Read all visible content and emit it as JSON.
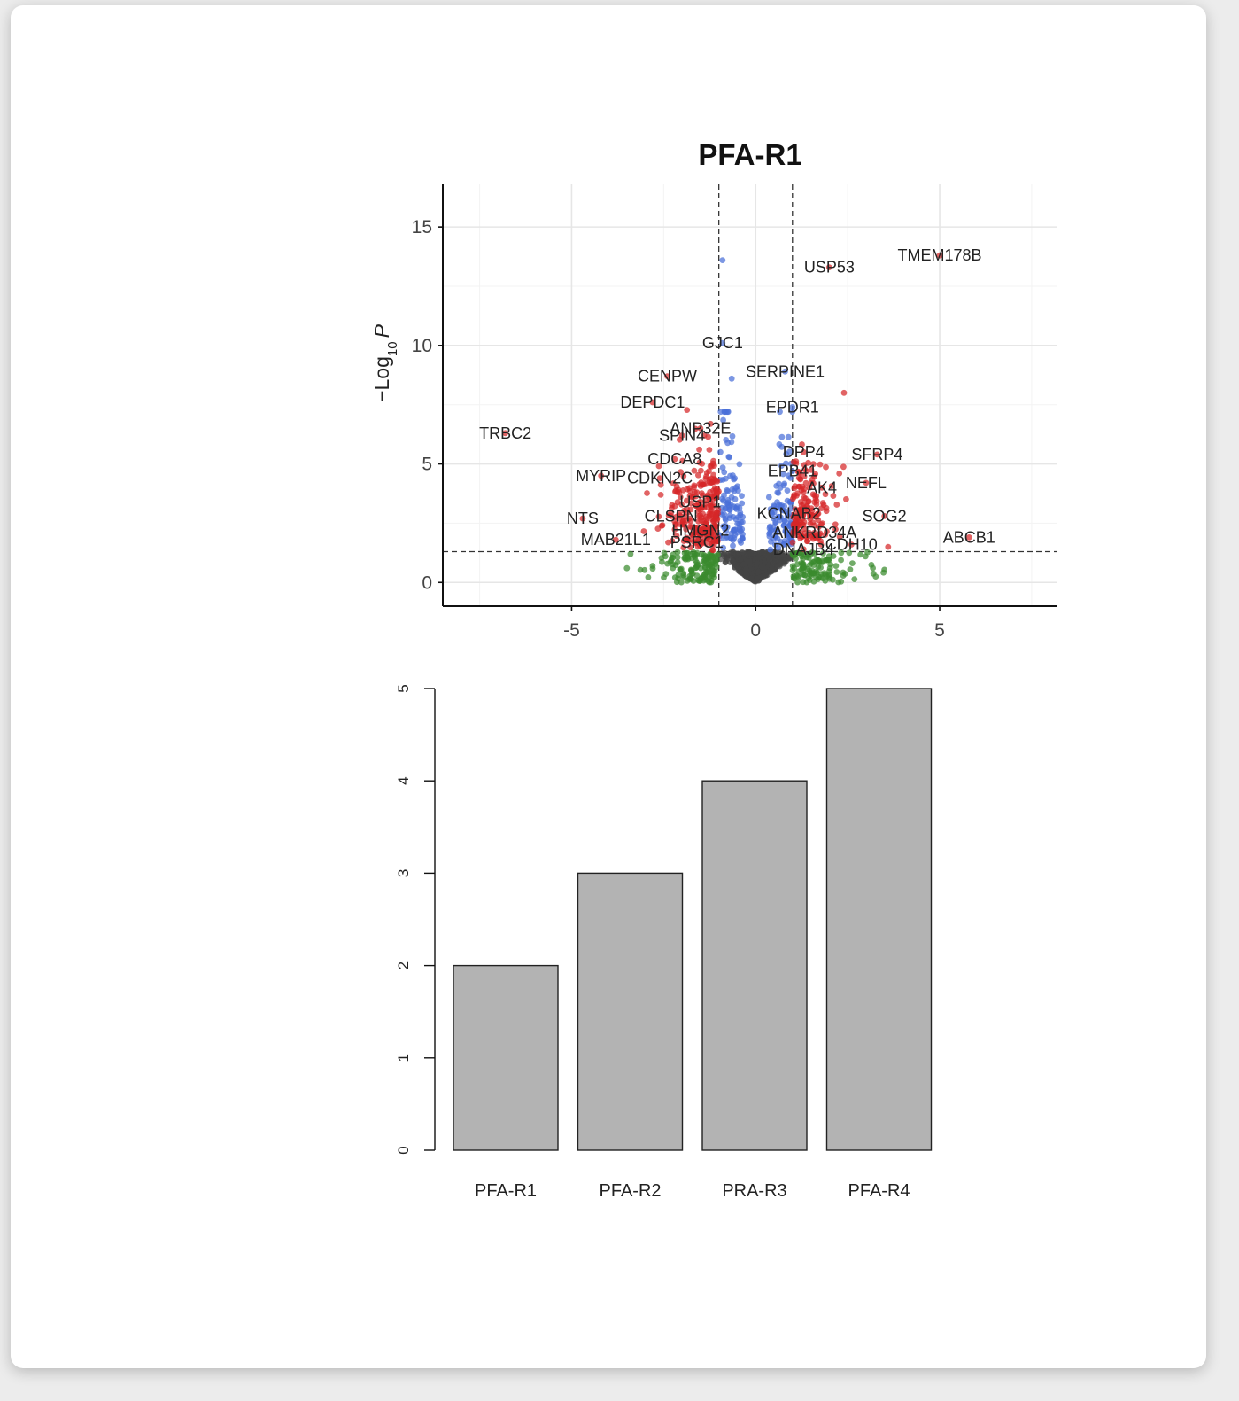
{
  "chart_data": [
    {
      "type": "scatter",
      "title": "PFA-R1",
      "xlabel": "",
      "ylabel": "−Log10 P",
      "xlim": [
        -8.5,
        8.2
      ],
      "ylim": [
        -1,
        16.8
      ],
      "xticks": [
        -5,
        0,
        5
      ],
      "yticks": [
        0,
        5,
        10,
        15
      ],
      "grid": true,
      "legend": "none",
      "thresholds": {
        "x": [
          -1,
          1
        ],
        "y": 1.3
      },
      "colors": {
        "ns": "#444444",
        "log2fc": "#3a8a2e",
        "p": "#4a6fd8",
        "both": "#d62728"
      },
      "labels": [
        {
          "text": "TMEM178B",
          "x": 5.0,
          "y": 13.8
        },
        {
          "text": "USP53",
          "x": 2.0,
          "y": 13.3
        },
        {
          "text": "GJC1",
          "x": -0.9,
          "y": 10.1
        },
        {
          "text": "CENPW",
          "x": -2.4,
          "y": 8.7
        },
        {
          "text": "SERPINE1",
          "x": 0.8,
          "y": 8.9
        },
        {
          "text": "DEPDC1",
          "x": -2.8,
          "y": 7.6
        },
        {
          "text": "EPDR1",
          "x": 1.0,
          "y": 7.4
        },
        {
          "text": "TRBC2",
          "x": -6.8,
          "y": 6.3
        },
        {
          "text": "ANP32E",
          "x": -1.5,
          "y": 6.5
        },
        {
          "text": "SPIN4",
          "x": -2.0,
          "y": 6.2
        },
        {
          "text": "DPP4",
          "x": 1.3,
          "y": 5.5
        },
        {
          "text": "SFRP4",
          "x": 3.3,
          "y": 5.4
        },
        {
          "text": "CDCA8",
          "x": -2.2,
          "y": 5.2
        },
        {
          "text": "EPB41",
          "x": 1.0,
          "y": 4.7
        },
        {
          "text": "MYRIP",
          "x": -4.2,
          "y": 4.5
        },
        {
          "text": "CDKN2C",
          "x": -2.6,
          "y": 4.4
        },
        {
          "text": "NEFL",
          "x": 3.0,
          "y": 4.2
        },
        {
          "text": "AK4",
          "x": 1.8,
          "y": 4.0
        },
        {
          "text": "USP1",
          "x": -1.5,
          "y": 3.4
        },
        {
          "text": "NTS",
          "x": -4.7,
          "y": 2.7
        },
        {
          "text": "CLSPN",
          "x": -2.3,
          "y": 2.8
        },
        {
          "text": "KCNAB2",
          "x": 0.9,
          "y": 2.9
        },
        {
          "text": "SOG2",
          "x": 3.5,
          "y": 2.8
        },
        {
          "text": "HMGN2",
          "x": -1.5,
          "y": 2.2
        },
        {
          "text": "ANKRD34A",
          "x": 1.6,
          "y": 2.1
        },
        {
          "text": "ABCB1",
          "x": 5.8,
          "y": 1.9
        },
        {
          "text": "MAB21L1",
          "x": -3.8,
          "y": 1.8
        },
        {
          "text": "PSRC1",
          "x": -1.6,
          "y": 1.7
        },
        {
          "text": "CDH10",
          "x": 2.6,
          "y": 1.6
        },
        {
          "text": "DNAJB4",
          "x": 1.3,
          "y": 1.4
        }
      ]
    },
    {
      "type": "bar",
      "title": "",
      "xlabel": "",
      "ylabel": "",
      "categories": [
        "PFA-R1",
        "PFA-R2",
        "PRA-R3",
        "PFA-R4"
      ],
      "values": [
        2,
        3,
        4,
        5
      ],
      "ylim": [
        0,
        5
      ],
      "yticks": [
        0,
        1,
        2,
        3,
        4,
        5
      ],
      "bar_color": "#b3b3b3"
    }
  ]
}
